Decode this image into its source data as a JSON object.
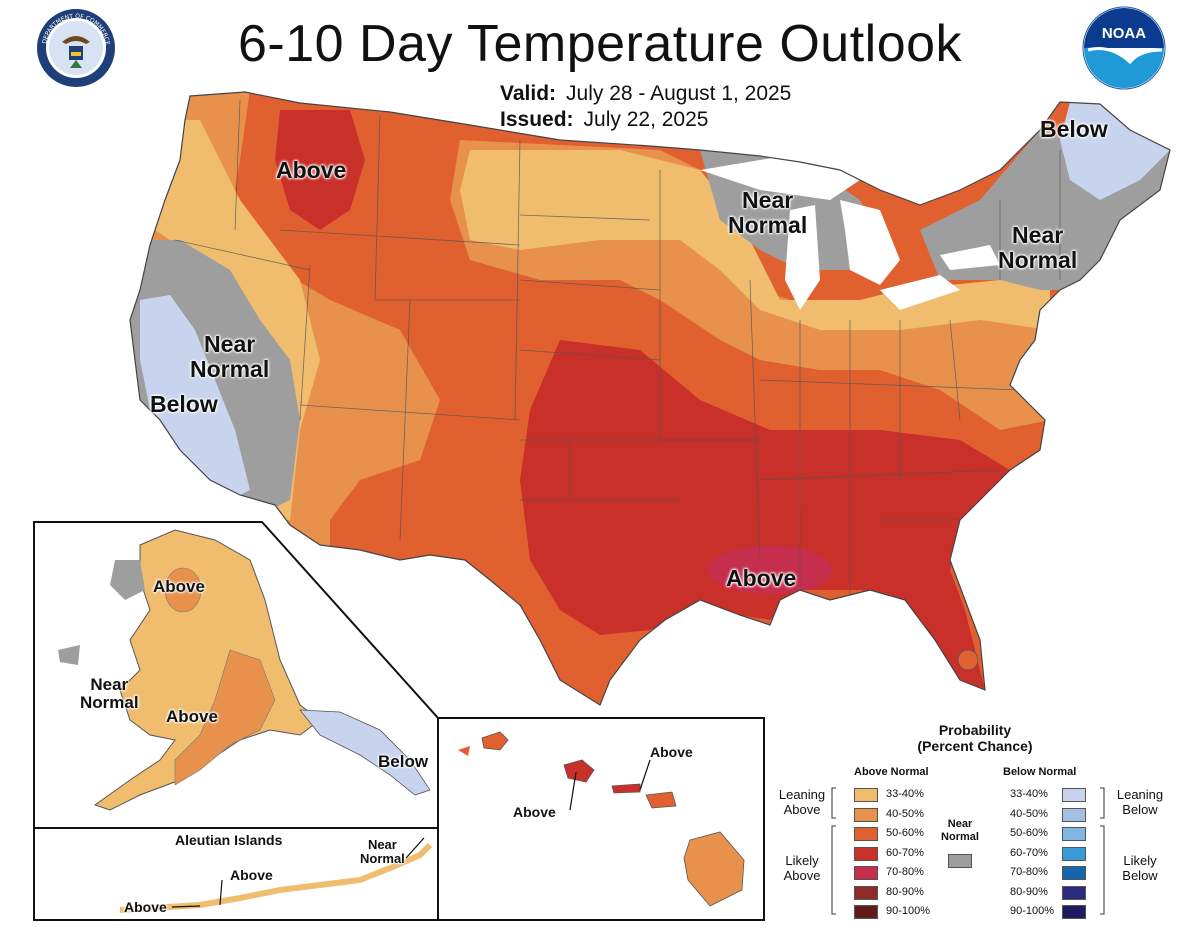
{
  "header": {
    "title": "6-10 Day Temperature Outlook",
    "valid_label": "Valid:",
    "valid_value": "July 28 - August 1, 2025",
    "issued_label": "Issued:",
    "issued_value": "July 22, 2025"
  },
  "logos": {
    "seal": "Department of Commerce seal",
    "seal_text": "DEPARTMENT OF COMMERCE · UNITED STATES OF AMERICA",
    "noaa": "NOAA logo",
    "noaa_text": "NOAA"
  },
  "colors": {
    "above_33_40": "#f0bd6f",
    "above_40_50": "#e8914d",
    "above_50_60": "#e0602f",
    "above_60_70": "#c9302a",
    "above_70_80": "#c62e4d",
    "above_80_90": "#8e2a2a",
    "above_90_100": "#621b1b",
    "near_normal": "#9e9e9e",
    "below_33_40": "#c8d4ee",
    "below_40_50": "#a3bfe4",
    "below_50_60": "#7fb6e6",
    "below_60_70": "#3a9ad8",
    "below_70_80": "#1266ad",
    "below_80_90": "#2a2a7e",
    "below_90_100": "#1e1b5c",
    "lakes": "#ffffff",
    "borders": "#555555"
  },
  "map_labels": {
    "conus_above_nw": "Above",
    "conus_near_normal_west": [
      "Near",
      "Normal"
    ],
    "conus_below_west": "Below",
    "conus_near_normal_greatlakes": [
      "Near",
      "Normal"
    ],
    "conus_below_ne": "Below",
    "conus_near_normal_ne": [
      "Near",
      "Normal"
    ],
    "conus_above_gulf": "Above",
    "alaska_above_north": "Above",
    "alaska_near_normal": [
      "Near",
      "Normal"
    ],
    "alaska_above_south": "Above",
    "alaska_below_panhandle": "Below",
    "aleutian_title": "Aleutian Islands",
    "aleutian_above_1": "Above",
    "aleutian_above_2": "Above",
    "aleutian_near_normal": [
      "Near",
      "Normal"
    ],
    "hawaii_above_1": "Above",
    "hawaii_above_2": "Above"
  },
  "legend": {
    "title_line1": "Probability",
    "title_line2": "(Percent Chance)",
    "above_header": "Above Normal",
    "below_header": "Below Normal",
    "near_normal_label": [
      "Near",
      "Normal"
    ],
    "leaning_above": [
      "Leaning",
      "Above"
    ],
    "likely_above": [
      "Likely",
      "Above"
    ],
    "leaning_below": [
      "Leaning",
      "Below"
    ],
    "likely_below": [
      "Likely",
      "Below"
    ],
    "bins": [
      "33-40%",
      "40-50%",
      "50-60%",
      "60-70%",
      "70-80%",
      "80-90%",
      "90-100%"
    ],
    "above_colors": [
      "#f0bd6f",
      "#e8914d",
      "#e0602f",
      "#c9302a",
      "#c62e4d",
      "#8e2a2a",
      "#621b1b"
    ],
    "below_colors": [
      "#c8d4ee",
      "#a3bfe4",
      "#7fb6e6",
      "#3a9ad8",
      "#1266ad",
      "#2a2a7e",
      "#1e1b5c"
    ]
  }
}
